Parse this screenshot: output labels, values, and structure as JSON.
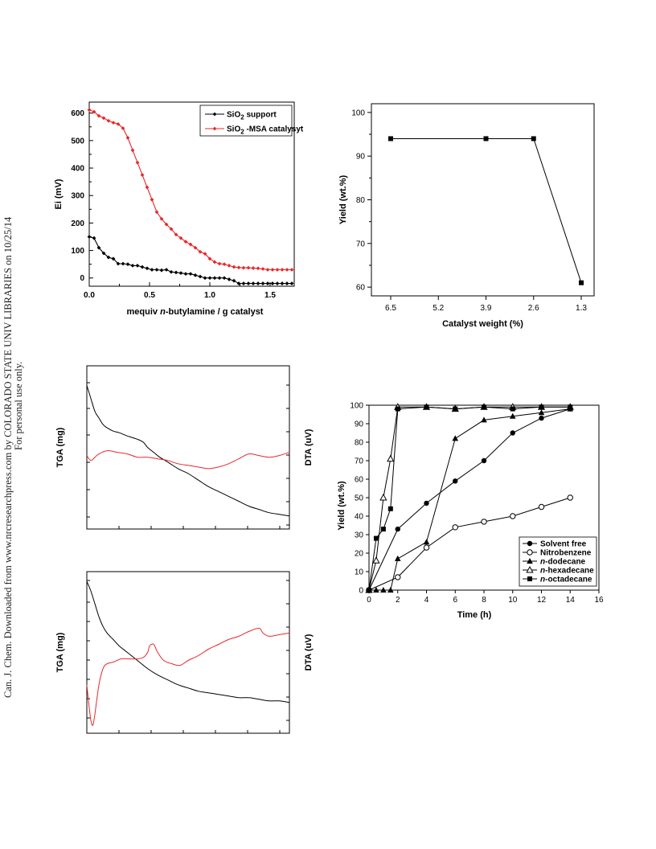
{
  "sidebar": {
    "line1": "Can. J. Chem. Downloaded from www.nrcresearchpress.com by COLORADO STATE UNIV LIBRARIES on 10/25/14",
    "line2": "For personal use only."
  },
  "chart_data": [
    {
      "id": "titration",
      "type": "line",
      "xlabel_pre": "mequiv ",
      "xlabel_it": "n",
      "xlabel_post": "-butylamine / g catalyst",
      "ylabel": "Ei (mV)",
      "xlim": [
        0,
        1.7
      ],
      "ylim": [
        -30,
        640
      ],
      "xticks": [
        "0.0",
        "0.5",
        "1.0",
        "1.5"
      ],
      "yticks": [
        "0",
        "100",
        "200",
        "300",
        "400",
        "500",
        "600"
      ],
      "legend_position": "top-right",
      "series": [
        {
          "name": "SiO2 support",
          "color": "#000000",
          "x": [
            0,
            0.04,
            0.08,
            0.12,
            0.16,
            0.2,
            0.24,
            0.28,
            0.32,
            0.36,
            0.4,
            0.44,
            0.48,
            0.52,
            0.56,
            0.6,
            0.64,
            0.68,
            0.72,
            0.76,
            0.8,
            0.84,
            0.88,
            0.92,
            0.96,
            1.0,
            1.04,
            1.08,
            1.12,
            1.16,
            1.2,
            1.24,
            1.28,
            1.32,
            1.36,
            1.4,
            1.44,
            1.48,
            1.52,
            1.56,
            1.6,
            1.64,
            1.68
          ],
          "y": [
            150,
            145,
            110,
            90,
            75,
            70,
            52,
            52,
            50,
            45,
            45,
            40,
            35,
            30,
            30,
            28,
            30,
            22,
            20,
            18,
            15,
            15,
            10,
            5,
            0,
            0,
            0,
            0,
            0,
            -5,
            -10,
            -20,
            -20,
            -20,
            -20,
            -20,
            -20,
            -20,
            -20,
            -20,
            -20,
            -20,
            -20
          ]
        },
        {
          "name": "SiO2 -MSA catalysyt",
          "color": "#e8282a",
          "x": [
            0,
            0.04,
            0.08,
            0.12,
            0.16,
            0.2,
            0.24,
            0.28,
            0.32,
            0.36,
            0.4,
            0.44,
            0.48,
            0.52,
            0.56,
            0.6,
            0.64,
            0.68,
            0.72,
            0.76,
            0.8,
            0.84,
            0.88,
            0.92,
            0.96,
            1.0,
            1.04,
            1.08,
            1.12,
            1.16,
            1.2,
            1.24,
            1.28,
            1.32,
            1.36,
            1.4,
            1.44,
            1.48,
            1.52,
            1.56,
            1.6,
            1.64,
            1.68
          ],
          "y": [
            612,
            605,
            590,
            582,
            572,
            565,
            560,
            545,
            510,
            465,
            420,
            375,
            330,
            285,
            240,
            215,
            195,
            178,
            158,
            145,
            132,
            122,
            110,
            95,
            88,
            70,
            58,
            52,
            50,
            45,
            40,
            38,
            37,
            37,
            36,
            35,
            33,
            30,
            30,
            30,
            30,
            30,
            30
          ]
        }
      ]
    },
    {
      "id": "catalyst-weight",
      "type": "line",
      "xlabel": "Catalyst weight (%)",
      "ylabel": "Yield (wt.%)",
      "ylim": [
        58,
        102
      ],
      "categories": [
        "6.5",
        "5.2",
        "3.9",
        "2.6",
        "1.3"
      ],
      "yticks": [
        "60",
        "70",
        "80",
        "90",
        "100"
      ],
      "series": [
        {
          "x": [
            "6.5",
            "3.9",
            "2.6",
            "1.3"
          ],
          "y": [
            94,
            94,
            94,
            61
          ]
        }
      ]
    },
    {
      "id": "thermal-1",
      "type": "line",
      "ylabel_left": "TGA (mg)",
      "ylabel_right": "DTA (uV)",
      "series": [
        {
          "name": "TGA",
          "color": "#000000",
          "x": [
            0,
            0.02,
            0.04,
            0.06,
            0.08,
            0.1,
            0.13,
            0.16,
            0.2,
            0.25,
            0.28,
            0.3,
            0.33,
            0.36,
            0.4,
            0.45,
            0.5,
            0.55,
            0.6,
            0.65,
            0.7,
            0.75,
            0.8,
            0.85,
            0.9,
            0.95,
            1.0
          ],
          "y": [
            0.88,
            0.8,
            0.72,
            0.68,
            0.64,
            0.62,
            0.6,
            0.59,
            0.57,
            0.55,
            0.53,
            0.5,
            0.47,
            0.44,
            0.41,
            0.37,
            0.34,
            0.3,
            0.26,
            0.23,
            0.2,
            0.17,
            0.14,
            0.12,
            0.1,
            0.09,
            0.08
          ]
        },
        {
          "name": "DTA",
          "color": "#e8282a",
          "x": [
            0,
            0.02,
            0.04,
            0.06,
            0.1,
            0.15,
            0.2,
            0.25,
            0.3,
            0.35,
            0.4,
            0.45,
            0.5,
            0.55,
            0.6,
            0.65,
            0.7,
            0.75,
            0.8,
            0.85,
            0.9,
            0.95,
            1.0
          ],
          "y": [
            0.45,
            0.42,
            0.44,
            0.46,
            0.48,
            0.47,
            0.46,
            0.44,
            0.44,
            0.43,
            0.42,
            0.4,
            0.39,
            0.38,
            0.37,
            0.38,
            0.4,
            0.43,
            0.46,
            0.45,
            0.44,
            0.45,
            0.47
          ]
        }
      ]
    },
    {
      "id": "thermal-2",
      "type": "line",
      "ylabel_left": "TGA (mg)",
      "ylabel_right": "DTA (uV)",
      "series": [
        {
          "name": "TGA",
          "color": "#000000",
          "x": [
            0,
            0.02,
            0.04,
            0.06,
            0.08,
            0.1,
            0.13,
            0.16,
            0.2,
            0.25,
            0.3,
            0.35,
            0.4,
            0.45,
            0.5,
            0.55,
            0.6,
            0.65,
            0.7,
            0.75,
            0.8,
            0.85,
            0.9,
            0.95,
            1.0
          ],
          "y": [
            0.94,
            0.88,
            0.8,
            0.72,
            0.66,
            0.62,
            0.58,
            0.54,
            0.5,
            0.45,
            0.4,
            0.36,
            0.33,
            0.3,
            0.28,
            0.26,
            0.25,
            0.24,
            0.23,
            0.22,
            0.22,
            0.21,
            0.2,
            0.2,
            0.19
          ]
        },
        {
          "name": "DTA",
          "color": "#e8282a",
          "x": [
            0,
            0.01,
            0.02,
            0.03,
            0.04,
            0.06,
            0.08,
            0.1,
            0.13,
            0.17,
            0.21,
            0.25,
            0.28,
            0.3,
            0.31,
            0.33,
            0.35,
            0.38,
            0.42,
            0.46,
            0.5,
            0.55,
            0.6,
            0.65,
            0.7,
            0.75,
            0.8,
            0.85,
            0.87,
            0.9,
            0.95,
            1.0
          ],
          "y": [
            0.3,
            0.18,
            0.08,
            0.05,
            0.12,
            0.3,
            0.4,
            0.43,
            0.44,
            0.46,
            0.46,
            0.46,
            0.47,
            0.5,
            0.54,
            0.55,
            0.5,
            0.45,
            0.43,
            0.42,
            0.45,
            0.48,
            0.52,
            0.55,
            0.58,
            0.6,
            0.63,
            0.65,
            0.62,
            0.6,
            0.61,
            0.62
          ]
        }
      ]
    },
    {
      "id": "time-course",
      "type": "line",
      "xlabel": "Time (h)",
      "ylabel": "Yield (wt.%)",
      "xlim": [
        0,
        16
      ],
      "ylim": [
        0,
        100
      ],
      "xticks": [
        "0",
        "2",
        "4",
        "6",
        "8",
        "10",
        "12",
        "14",
        "16"
      ],
      "yticks": [
        "0",
        "10",
        "20",
        "30",
        "40",
        "50",
        "60",
        "70",
        "80",
        "90",
        "100"
      ],
      "legend_position": "bottom-right",
      "series": [
        {
          "name": "Solvent free",
          "name_pre": "",
          "name_it": "",
          "name_post": "Solvent free",
          "marker": "circle-filled",
          "x": [
            0,
            2,
            4,
            6,
            8,
            10,
            12,
            14
          ],
          "y": [
            0,
            33,
            47,
            59,
            70,
            85,
            93,
            98
          ]
        },
        {
          "name": "Nitrobenzene",
          "name_pre": "",
          "name_it": "",
          "name_post": "Nitrobenzene",
          "marker": "circle-open",
          "x": [
            0,
            2,
            4,
            6,
            8,
            10,
            12,
            14
          ],
          "y": [
            0,
            7,
            23,
            34,
            37,
            40,
            45,
            50
          ]
        },
        {
          "name": "n-dodecane",
          "name_pre": "",
          "name_it": "n",
          "name_post": "-dodecane",
          "marker": "triangle-filled",
          "x": [
            0,
            0.5,
            1,
            1.5,
            2,
            4,
            6,
            8,
            10,
            12,
            14
          ],
          "y": [
            0,
            0,
            0,
            0,
            17,
            26,
            82,
            92,
            94,
            96,
            98
          ]
        },
        {
          "name": "n-hexadecane",
          "name_pre": "",
          "name_it": "n",
          "name_post": "-hexadecane",
          "marker": "triangle-open",
          "x": [
            0,
            0.5,
            1,
            1.5,
            2,
            4,
            6,
            8,
            10,
            12,
            14
          ],
          "y": [
            0,
            16,
            50,
            71,
            99,
            99,
            98,
            99,
            99,
            99,
            99
          ]
        },
        {
          "name": "n-octadecane",
          "name_pre": "",
          "name_it": "n",
          "name_post": "-octadecane",
          "marker": "square-filled",
          "x": [
            0,
            0.5,
            1,
            1.5,
            2,
            4,
            6,
            8,
            10,
            12,
            14
          ],
          "y": [
            0,
            28,
            33,
            44,
            98,
            99,
            98,
            99,
            98,
            99,
            99
          ]
        }
      ]
    }
  ]
}
